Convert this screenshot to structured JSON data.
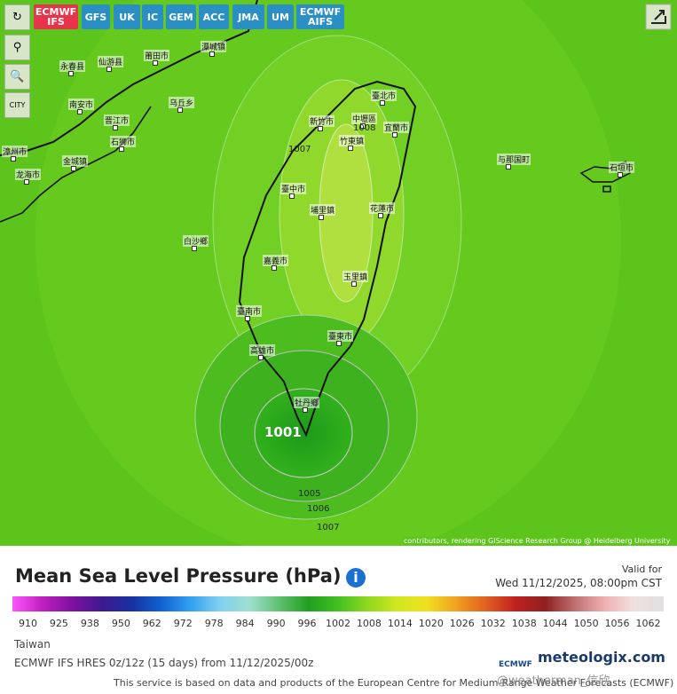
{
  "toolbar": {
    "models": [
      [
        "ECMWF",
        "IFS"
      ],
      [
        "GFS"
      ],
      [
        "UK"
      ],
      [
        "IC"
      ],
      [
        "GEM"
      ],
      [
        "ACC"
      ],
      [
        "JMA"
      ],
      [
        "UM"
      ],
      [
        "ECMWF",
        "AIFS"
      ]
    ],
    "city_toggle": "CITY"
  },
  "map": {
    "cities": [
      "潭城镇",
      "永春县",
      "仙游县",
      "莆田市",
      "南安市",
      "乌丘乡",
      "晋江市",
      "石狮市",
      "漳州市",
      "龙海市",
      "金城镇",
      "臺北市",
      "中壢區",
      "新竹市",
      "竹東鎮",
      "宜蘭市",
      "臺中市",
      "埔里鎮",
      "花蓮市",
      "白沙鄉",
      "嘉義市",
      "玉里鎮",
      "臺南市",
      "臺東市",
      "高雄市",
      "牡丹鄉",
      "与那国町",
      "石垣市"
    ],
    "isobar_labels": [
      "1007",
      "1008",
      "1001",
      "1005",
      "1006",
      "1007"
    ],
    "attribution": "contributors, rendering GIScience Research Group @ Heidelberg University"
  },
  "legend": {
    "title": "Mean Sea Level Pressure (hPa)",
    "valid_label": "Valid for",
    "valid_time": "Wed 11/12/2025, 08:00pm CST",
    "scale": [
      910,
      925,
      938,
      950,
      962,
      972,
      978,
      984,
      990,
      996,
      1002,
      1008,
      1014,
      1020,
      1026,
      1032,
      1038,
      1044,
      1050,
      1056,
      1062
    ]
  },
  "footer": {
    "region": "Taiwan",
    "model_run": "ECMWF IFS HRES 0z/12z (15 days) from 11/12/2025/00z",
    "notice": "This service is based on data and products of the European Centre for Medium-Range Weather Forecasts (ECMWF)",
    "ecmwf_logo": "ECMWF",
    "brand": "meteologix.com",
    "watermark": "@weatherman_信欣"
  }
}
